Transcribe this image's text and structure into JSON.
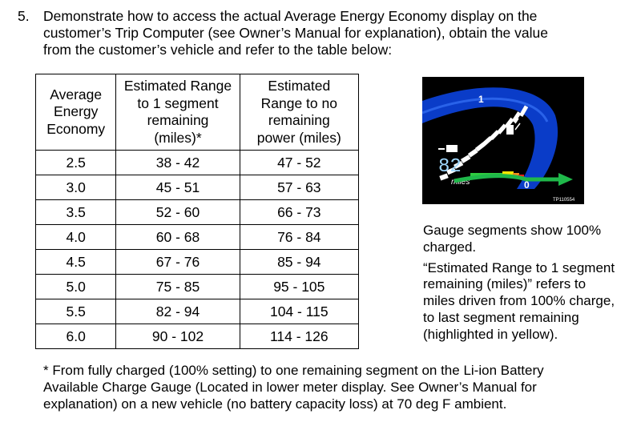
{
  "instruction": {
    "number": "5.",
    "lines": [
      "Demonstrate how to access the actual Average Energy Economy display on the",
      "customer’s Trip Computer (see Owner’s Manual for explanation), obtain the value",
      "from the customer’s vehicle and refer to the table below:"
    ]
  },
  "table": {
    "headers": [
      [
        "Average",
        "Energy",
        "Economy"
      ],
      [
        "Estimated Range",
        "to 1 segment",
        "remaining",
        "(miles)*"
      ],
      [
        "Estimated",
        "Range to no",
        "remaining",
        "power (miles)"
      ]
    ],
    "rows": [
      [
        "2.5",
        "38 - 42",
        "47 - 52"
      ],
      [
        "3.0",
        "45 - 51",
        "57 - 63"
      ],
      [
        "3.5",
        "52 - 60",
        "66 - 73"
      ],
      [
        "4.0",
        "60 - 68",
        "76 - 84"
      ],
      [
        "4.5",
        "67 - 76",
        "85 - 94"
      ],
      [
        "5.0",
        "75 - 85",
        "95 - 105"
      ],
      [
        "5.5",
        "82 - 94",
        "104 - 115"
      ],
      [
        "6.0",
        "90 - 102",
        "114 - 126"
      ]
    ]
  },
  "gauge": {
    "top_label": "1",
    "bottom_label": "0",
    "range_value": "82",
    "range_unit": "miles",
    "image_code": "TP110554",
    "segments_charged_fraction": 1.0,
    "colors": {
      "background": "#000000",
      "band": "#0a3cc8",
      "segment": "#ffffff",
      "yellow": "#f2e600",
      "green": "#2ecc40",
      "red": "#e8231a",
      "orange": "#f08c1e",
      "arrow": "#1fb84a"
    }
  },
  "notes": {
    "charged": [
      "Gauge segments show 100%",
      "charged."
    ],
    "explanation": [
      "“Estimated Range to 1 segment",
      "remaining (miles)” refers to",
      "miles driven from 100% charge,",
      "to last segment remaining",
      "(highlighted in yellow)."
    ]
  },
  "footnote": {
    "lines": [
      "* From fully charged (100% setting) to one remaining segment on the Li-ion Battery",
      "Available Charge Gauge (Located in lower meter display. See Owner’s Manual for",
      "explanation) on a new vehicle (no battery capacity loss) at 70 deg F ambient."
    ]
  }
}
